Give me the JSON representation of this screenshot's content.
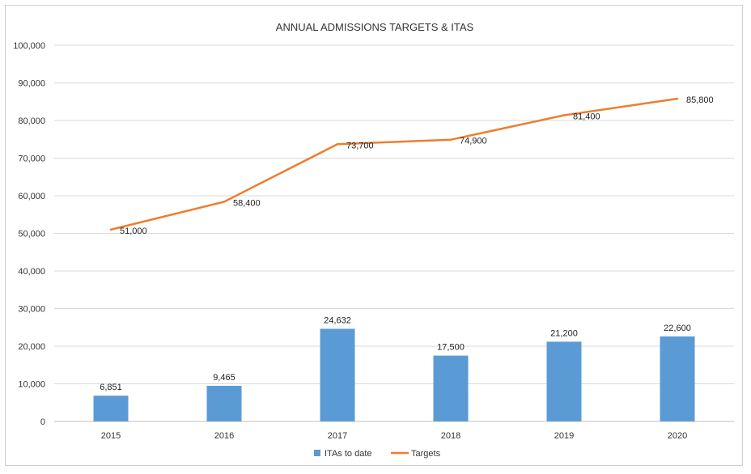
{
  "chart_data": {
    "type": "bar",
    "title": "ANNUAL ADMISSIONS TARGETS & ITAS",
    "xlabel": "",
    "ylabel": "",
    "categories": [
      "2015",
      "2016",
      "2017",
      "2018",
      "2019",
      "2020"
    ],
    "ylim": [
      0,
      100000
    ],
    "yticks": [
      0,
      10000,
      20000,
      30000,
      40000,
      50000,
      60000,
      70000,
      80000,
      90000,
      100000
    ],
    "ytick_labels": [
      "0",
      "10,000",
      "20,000",
      "30,000",
      "40,000",
      "50,000",
      "60,000",
      "70,000",
      "80,000",
      "90,000",
      "100,000"
    ],
    "grid": true,
    "legend_position": "bottom",
    "series": [
      {
        "name": "ITAs to date",
        "type": "bar",
        "color": "#5b9bd5",
        "values": [
          6851,
          9465,
          24632,
          17500,
          21200,
          22600
        ],
        "labels": [
          "6,851",
          "9,465",
          "24,632",
          "17,500",
          "21,200",
          "22,600"
        ]
      },
      {
        "name": "Targets",
        "type": "line",
        "color": "#ed7d31",
        "values": [
          51000,
          58400,
          73700,
          74900,
          81400,
          85800
        ],
        "labels": [
          "51,000",
          "58,400",
          "73,700",
          "74,900",
          "81,400",
          "85,800"
        ]
      }
    ]
  }
}
